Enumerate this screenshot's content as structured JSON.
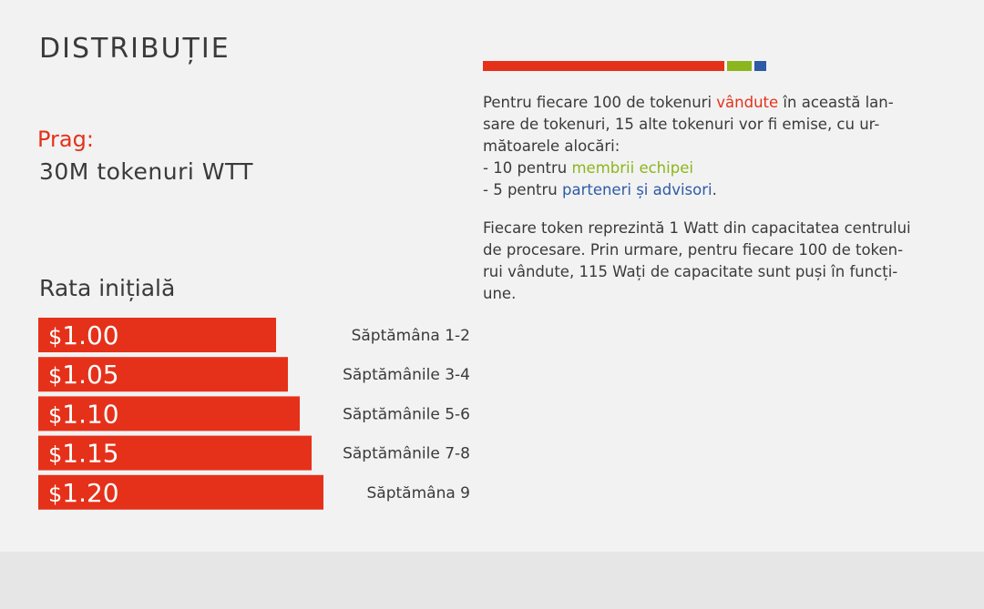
{
  "title": "DISTRIBUȚIE",
  "threshold": {
    "label": "Prag:",
    "value": "30M tokenuri WTT"
  },
  "colors": {
    "red": "#e5311a",
    "green": "#8bb61d",
    "blue": "#2e5aa6",
    "text": "#3a3a3a"
  },
  "allocation_bar": [
    {
      "share": 100,
      "color": "#e5311a"
    },
    {
      "share": 10,
      "color": "#8bb61d"
    },
    {
      "share": 5,
      "color": "#2e5aa6"
    }
  ],
  "chart_data": {
    "type": "bar",
    "orientation": "horizontal",
    "title": "Rata inițială",
    "currency_symbol": "$",
    "categories": [
      "Săptămâna 1-2",
      "Săptămânile 3-4",
      "Săptămânile 5-6",
      "Săptămânile 7-8",
      "Săptămâna 9"
    ],
    "values": [
      1.0,
      1.05,
      1.1,
      1.15,
      1.2
    ],
    "value_labels": [
      "1.00",
      "1.05",
      "1.10",
      "1.15",
      "1.20"
    ],
    "color": "#e5311a"
  },
  "description": {
    "p1": {
      "l1_before": "Pentru fiecare 100 de tokenuri ",
      "l1_highlight": "vândute",
      "l1_after": " în această lan-",
      "l2": "sare de tokenuri, 15 alte tokenuri vor fi emise, cu ur-",
      "l3": "mătoarele alocări:",
      "l4_before": "- 10 pentru ",
      "l4_highlight": "membrii echipei",
      "l5_before": "- 5 pentru ",
      "l5_highlight": "parteneri și advisori",
      "l5_after": "."
    },
    "p2": {
      "l1": "Fiecare token reprezintă 1 Watt din capacitatea centrului",
      "l2": "de procesare. Prin urmare, pentru fiecare 100 de token-",
      "l3": "rui vândute, 115 Wați de capacitate sunt puși în funcți-",
      "l4": "une."
    }
  }
}
